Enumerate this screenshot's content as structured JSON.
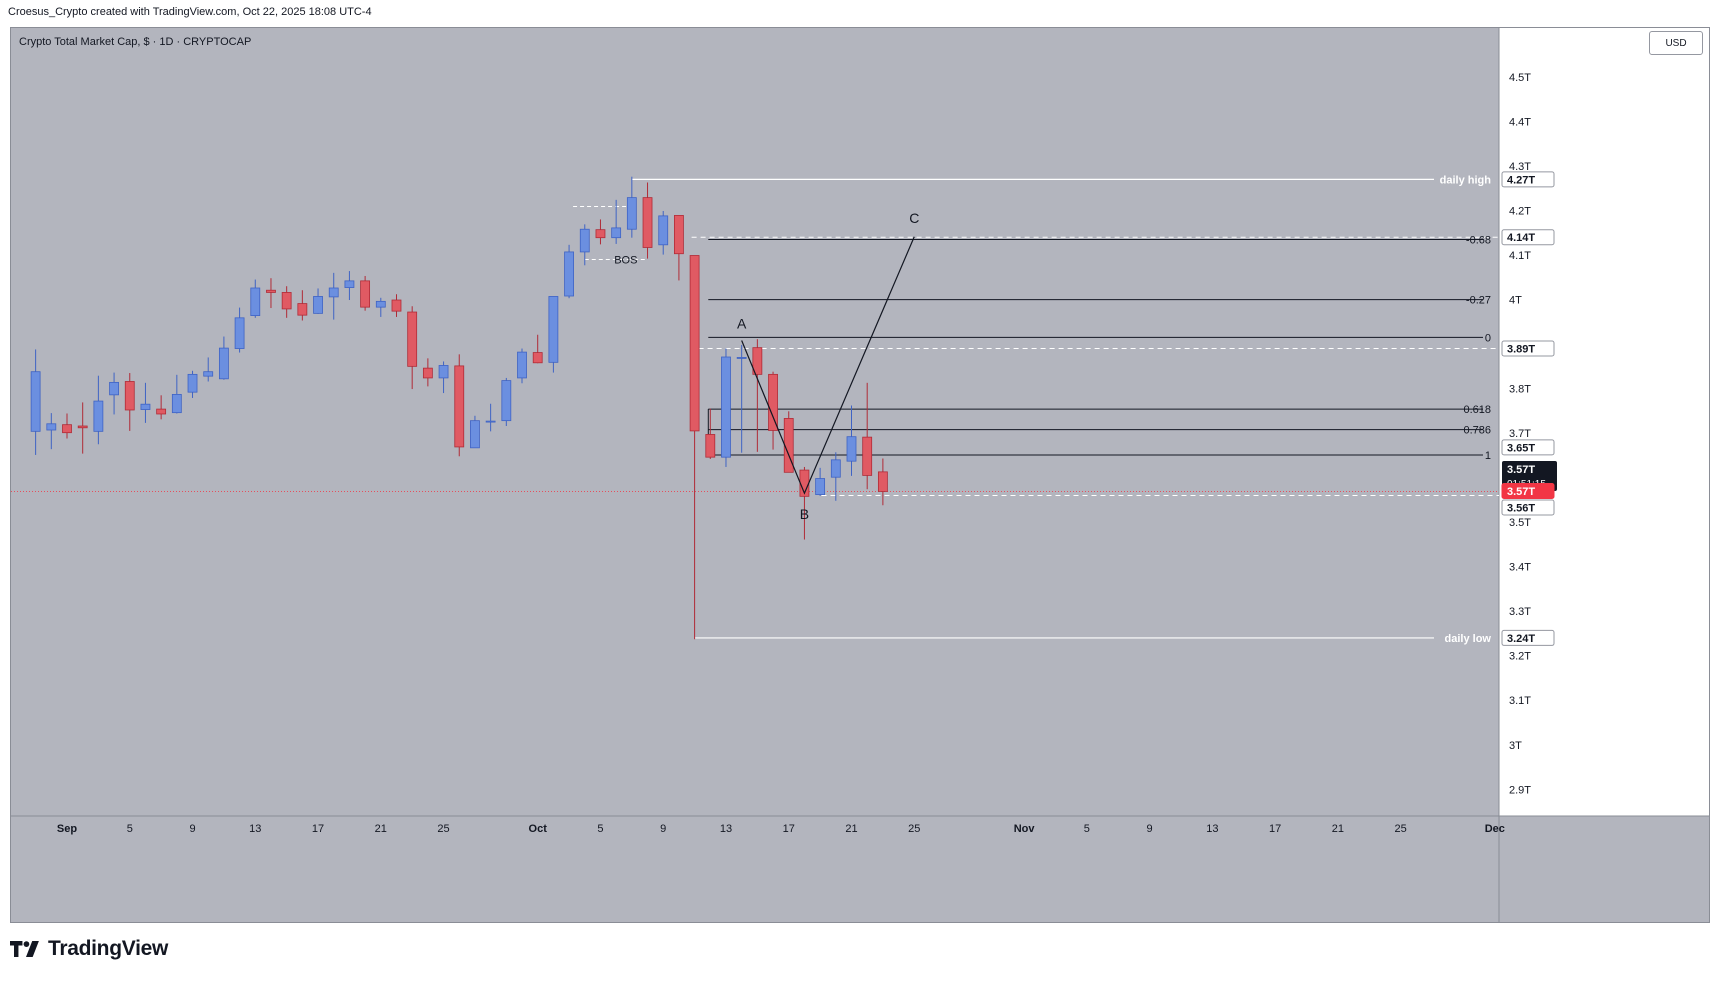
{
  "header": {
    "attribution": "Croesus_Crypto created with TradingView.com, Oct 22, 2025 18:08 UTC-4"
  },
  "chart_title": "Crypto Total Market Cap, $ · 1D · CRYPTOCAP",
  "currency": "USD",
  "brand": "TradingView",
  "colors": {
    "background": "#b3b5be",
    "up": "#6b8fe0",
    "up_border": "#3f63c4",
    "down": "#e05a63",
    "down_border": "#b02b37",
    "level": "#ffffff",
    "fib": "#131722",
    "price_line": "#f23645"
  },
  "chart_data": {
    "type": "candlestick",
    "x_ticks": [
      "Sep",
      "5",
      "9",
      "13",
      "17",
      "21",
      "25",
      "Oct",
      "5",
      "9",
      "13",
      "17",
      "21",
      "25",
      "Nov",
      "5",
      "9",
      "13",
      "17",
      "21",
      "25",
      "Dec"
    ],
    "y_ticks": [
      "4.5T",
      "4.4T",
      "4.3T",
      "4.2T",
      "4.1T",
      "4T",
      "3.8T",
      "3.7T",
      "3.5T",
      "3.4T",
      "3.3T",
      "3.2T",
      "3.1T",
      "3T",
      "2.9T"
    ],
    "ylim": [
      2.84,
      4.61
    ],
    "candles": [
      {
        "d": "2025-08-30",
        "o": 3.704,
        "h": 3.888,
        "l": 3.651,
        "c": 3.838
      },
      {
        "d": "2025-08-31",
        "o": 3.707,
        "h": 3.745,
        "l": 3.664,
        "c": 3.721
      },
      {
        "d": "2025-09-01",
        "o": 3.719,
        "h": 3.744,
        "l": 3.688,
        "c": 3.701
      },
      {
        "d": "2025-09-02",
        "o": 3.716,
        "h": 3.769,
        "l": 3.654,
        "c": 3.712
      },
      {
        "d": "2025-09-03",
        "o": 3.704,
        "h": 3.829,
        "l": 3.675,
        "c": 3.772
      },
      {
        "d": "2025-09-04",
        "o": 3.786,
        "h": 3.836,
        "l": 3.742,
        "c": 3.814
      },
      {
        "d": "2025-09-05",
        "o": 3.816,
        "h": 3.835,
        "l": 3.705,
        "c": 3.752
      },
      {
        "d": "2025-09-06",
        "o": 3.753,
        "h": 3.813,
        "l": 3.723,
        "c": 3.765
      },
      {
        "d": "2025-09-07",
        "o": 3.754,
        "h": 3.785,
        "l": 3.731,
        "c": 3.743
      },
      {
        "d": "2025-09-08",
        "o": 3.746,
        "h": 3.831,
        "l": 3.744,
        "c": 3.787
      },
      {
        "d": "2025-09-09",
        "o": 3.792,
        "h": 3.84,
        "l": 3.779,
        "c": 3.832
      },
      {
        "d": "2025-09-10",
        "o": 3.828,
        "h": 3.87,
        "l": 3.816,
        "c": 3.838
      },
      {
        "d": "2025-09-11",
        "o": 3.822,
        "h": 3.917,
        "l": 3.82,
        "c": 3.891
      },
      {
        "d": "2025-09-12",
        "o": 3.89,
        "h": 3.982,
        "l": 3.881,
        "c": 3.959
      },
      {
        "d": "2025-09-13",
        "o": 3.964,
        "h": 4.045,
        "l": 3.959,
        "c": 4.026
      },
      {
        "d": "2025-09-14",
        "o": 4.021,
        "h": 4.048,
        "l": 3.981,
        "c": 4.016
      },
      {
        "d": "2025-09-15",
        "o": 4.016,
        "h": 4.03,
        "l": 3.959,
        "c": 3.979
      },
      {
        "d": "2025-09-16",
        "o": 3.991,
        "h": 4.021,
        "l": 3.953,
        "c": 3.965
      },
      {
        "d": "2025-09-17",
        "o": 3.969,
        "h": 4.025,
        "l": 3.968,
        "c": 4.007
      },
      {
        "d": "2025-09-18",
        "o": 4.006,
        "h": 4.06,
        "l": 3.955,
        "c": 4.026
      },
      {
        "d": "2025-09-19",
        "o": 4.027,
        "h": 4.064,
        "l": 3.999,
        "c": 4.042
      },
      {
        "d": "2025-09-20",
        "o": 4.042,
        "h": 4.053,
        "l": 3.975,
        "c": 3.983
      },
      {
        "d": "2025-09-21",
        "o": 3.983,
        "h": 4.004,
        "l": 3.961,
        "c": 3.996
      },
      {
        "d": "2025-09-22",
        "o": 3.999,
        "h": 4.012,
        "l": 3.961,
        "c": 3.974
      },
      {
        "d": "2025-09-23",
        "o": 3.972,
        "h": 3.985,
        "l": 3.799,
        "c": 3.85
      },
      {
        "d": "2025-09-24",
        "o": 3.846,
        "h": 3.868,
        "l": 3.805,
        "c": 3.824
      },
      {
        "d": "2025-09-25",
        "o": 3.824,
        "h": 3.861,
        "l": 3.79,
        "c": 3.852
      },
      {
        "d": "2025-09-26",
        "o": 3.851,
        "h": 3.877,
        "l": 3.648,
        "c": 3.669
      },
      {
        "d": "2025-09-27",
        "o": 3.667,
        "h": 3.739,
        "l": 3.667,
        "c": 3.728
      },
      {
        "d": "2025-09-28",
        "o": 3.725,
        "h": 3.766,
        "l": 3.704,
        "c": 3.727
      },
      {
        "d": "2025-09-29",
        "o": 3.728,
        "h": 3.824,
        "l": 3.716,
        "c": 3.818
      },
      {
        "d": "2025-09-30",
        "o": 3.824,
        "h": 3.89,
        "l": 3.812,
        "c": 3.882
      },
      {
        "d": "2025-10-01",
        "o": 3.881,
        "h": 3.921,
        "l": 3.857,
        "c": 3.858
      },
      {
        "d": "2025-10-02",
        "o": 3.859,
        "h": 4.007,
        "l": 3.836,
        "c": 4.007
      },
      {
        "d": "2025-10-03",
        "o": 4.008,
        "h": 4.123,
        "l": 4.003,
        "c": 4.107
      },
      {
        "d": "2025-10-04",
        "o": 4.107,
        "h": 4.169,
        "l": 4.077,
        "c": 4.158
      },
      {
        "d": "2025-10-05",
        "o": 4.157,
        "h": 4.18,
        "l": 4.124,
        "c": 4.139
      },
      {
        "d": "2025-10-06",
        "o": 4.139,
        "h": 4.224,
        "l": 4.125,
        "c": 4.161
      },
      {
        "d": "2025-10-07",
        "o": 4.158,
        "h": 4.276,
        "l": 4.139,
        "c": 4.229
      },
      {
        "d": "2025-10-08",
        "o": 4.229,
        "h": 4.263,
        "l": 4.092,
        "c": 4.117
      },
      {
        "d": "2025-10-09",
        "o": 4.123,
        "h": 4.199,
        "l": 4.101,
        "c": 4.188
      },
      {
        "d": "2025-10-10",
        "o": 4.189,
        "h": 4.182,
        "l": 4.043,
        "c": 4.103
      },
      {
        "d": "2025-10-11",
        "o": 4.099,
        "h": 4.099,
        "l": 3.237,
        "c": 3.705
      },
      {
        "d": "2025-10-12",
        "o": 3.697,
        "h": 3.755,
        "l": 3.642,
        "c": 3.646
      },
      {
        "d": "2025-10-13",
        "o": 3.646,
        "h": 3.89,
        "l": 3.624,
        "c": 3.871
      },
      {
        "d": "2025-10-14",
        "o": 3.868,
        "h": 3.898,
        "l": 3.656,
        "c": 3.87
      },
      {
        "d": "2025-10-15",
        "o": 3.892,
        "h": 3.911,
        "l": 3.658,
        "c": 3.832
      },
      {
        "d": "2025-10-16",
        "o": 3.832,
        "h": 3.838,
        "l": 3.663,
        "c": 3.706
      },
      {
        "d": "2025-10-17",
        "o": 3.733,
        "h": 3.749,
        "l": 3.624,
        "c": 3.612
      },
      {
        "d": "2025-10-18",
        "o": 3.617,
        "h": 3.624,
        "l": 3.461,
        "c": 3.558
      },
      {
        "d": "2025-10-19",
        "o": 3.562,
        "h": 3.622,
        "l": 3.559,
        "c": 3.598
      },
      {
        "d": "2025-10-20",
        "o": 3.601,
        "h": 3.657,
        "l": 3.548,
        "c": 3.64
      },
      {
        "d": "2025-10-21",
        "o": 3.637,
        "h": 3.762,
        "l": 3.604,
        "c": 3.692
      },
      {
        "d": "2025-10-22",
        "o": 3.691,
        "h": 3.813,
        "l": 3.574,
        "c": 3.605
      },
      {
        "d": "2025-10-23",
        "o": 3.613,
        "h": 3.643,
        "l": 3.538,
        "c": 3.569
      }
    ],
    "levels": [
      {
        "name": "daily high",
        "value": 4.27,
        "tag": "4.27T"
      },
      {
        "name": "daily low",
        "value": 3.24,
        "tag": "3.24T"
      }
    ],
    "fib_levels": [
      {
        "label": "-0.68",
        "value": 4.135
      },
      {
        "label": "-0.27",
        "value": 4.0
      },
      {
        "label": "0",
        "value": 3.915
      },
      {
        "label": "0.618",
        "value": 3.754
      },
      {
        "label": "0.786",
        "value": 3.708
      },
      {
        "label": "1",
        "value": 3.651
      }
    ],
    "dashed_levels": [
      {
        "value": 4.14,
        "tag": "4.14T"
      },
      {
        "value": 3.89,
        "tag": "3.89T"
      },
      {
        "value": 3.56,
        "tag": "3.56T"
      }
    ],
    "price_tags": [
      {
        "value": 3.65,
        "text": "3.65T",
        "style": "white"
      },
      {
        "value": 3.57,
        "text": "3.57T",
        "style": "black",
        "countdown": "01:51:15"
      },
      {
        "value": 3.57,
        "text": "3.57T",
        "style": "red"
      }
    ],
    "abc_points": [
      {
        "label": "A",
        "date": "2025-10-14",
        "value": 3.908
      },
      {
        "label": "B",
        "date": "2025-10-18",
        "value": 3.565
      },
      {
        "label": "C",
        "date": "2025-10-25",
        "value": 4.141
      }
    ],
    "annotation": "BOS",
    "bos_level": 4.209,
    "bos_low": 4.09,
    "current_price": 3.569
  }
}
